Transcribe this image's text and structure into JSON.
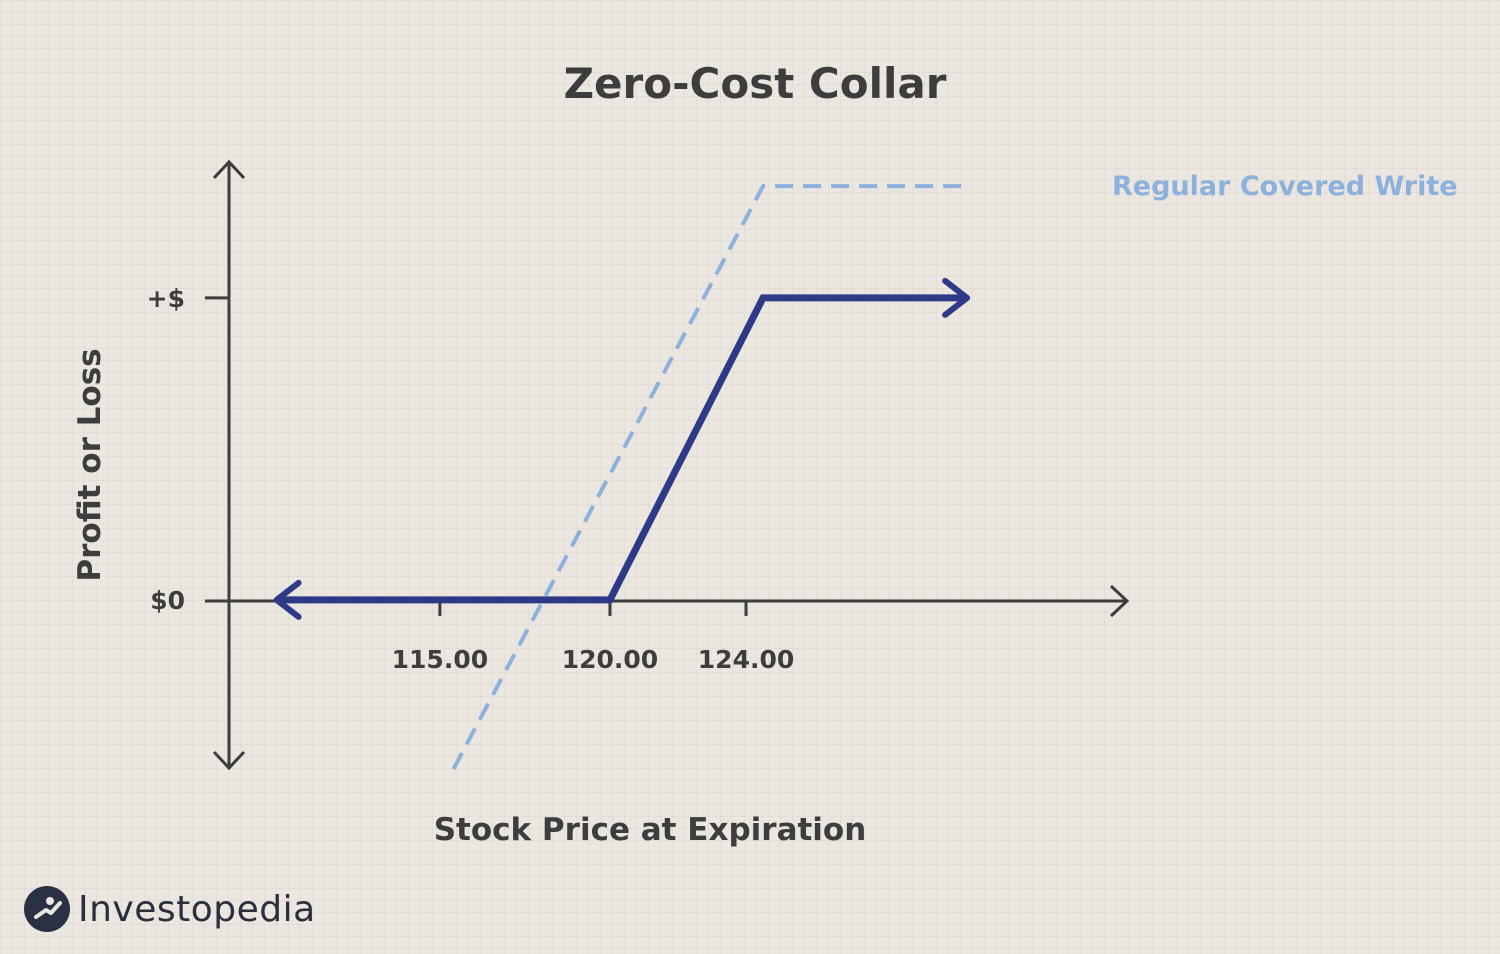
{
  "chart_data": {
    "type": "line",
    "title": "Zero-Cost Collar",
    "xlabel": "Stock Price at Expiration",
    "ylabel": "Profit or Loss",
    "x_ticks": [
      {
        "value": 115,
        "label": "115.00"
      },
      {
        "value": 120,
        "label": "120.00"
      },
      {
        "value": 124,
        "label": "124.00"
      }
    ],
    "y_ticks": [
      {
        "value": 0,
        "label": "$0"
      },
      {
        "value": 1,
        "label": "+$"
      }
    ],
    "xlim": [
      108.8,
      135.2
    ],
    "ylim": [
      -0.55,
      1.45
    ],
    "series": [
      {
        "name": "Zero-Cost Collar",
        "color": "#2e3a87",
        "style": "solid",
        "arrow_start": true,
        "arrow_end": true,
        "points": [
          [
            110.2,
            0
          ],
          [
            120,
            0
          ],
          [
            124.5,
            1
          ],
          [
            130.5,
            1
          ]
        ]
      },
      {
        "name": "Regular Covered Write",
        "color": "#8db1dd",
        "style": "dashed",
        "label": "Regular Covered Write",
        "points": [
          [
            115.4,
            -0.56
          ],
          [
            124.5,
            1.37
          ],
          [
            130.5,
            1.37
          ]
        ]
      }
    ]
  },
  "brand": {
    "name": "Investopedia",
    "mark_icon": "investopedia-logo-icon"
  }
}
